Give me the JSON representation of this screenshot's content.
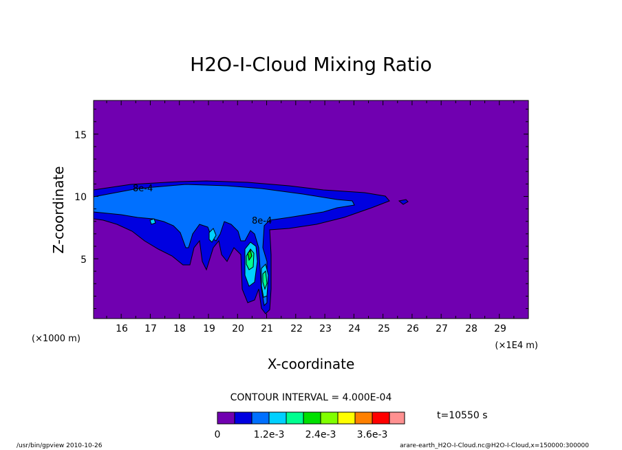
{
  "chart_data": {
    "type": "contour",
    "title": "H2O-I-Cloud Mixing Ratio",
    "xlabel": "X-coordinate",
    "ylabel": "Z-coordinate",
    "x_unit_left": "(×1000 m)",
    "x_unit_right": "(×1E4 m)",
    "x_ticks": [
      "16",
      "17",
      "18",
      "19",
      "20",
      "21",
      "22",
      "23",
      "24",
      "25",
      "26",
      "27",
      "28",
      "29"
    ],
    "y_ticks": [
      "5",
      "10",
      "15"
    ],
    "xlim": [
      15.05,
      30.0
    ],
    "ylim": [
      0.2,
      17.7
    ],
    "contour_labels": [
      "8e-4",
      "8e-4"
    ],
    "contour_interval_text": "CONTOUR INTERVAL = 4.000E-04",
    "time_text": "t=10550 s",
    "colorbar": {
      "colors": [
        "#7000b0",
        "#0000e0",
        "#0070ff",
        "#00d0ff",
        "#00ff90",
        "#00e000",
        "#80ff00",
        "#ffff00",
        "#ff8000",
        "#ff0000",
        "#ff9090"
      ],
      "labels": [
        "0",
        "1.2e-3",
        "2.4e-3",
        "3.6e-3"
      ]
    },
    "background_color": "#7000b0"
  },
  "footer": {
    "left": "/usr/bin/gpview   2010-10-26",
    "right": "arare-earth_H2O-I-Cloud.nc@H2O-I-Cloud,x=150000:300000"
  }
}
